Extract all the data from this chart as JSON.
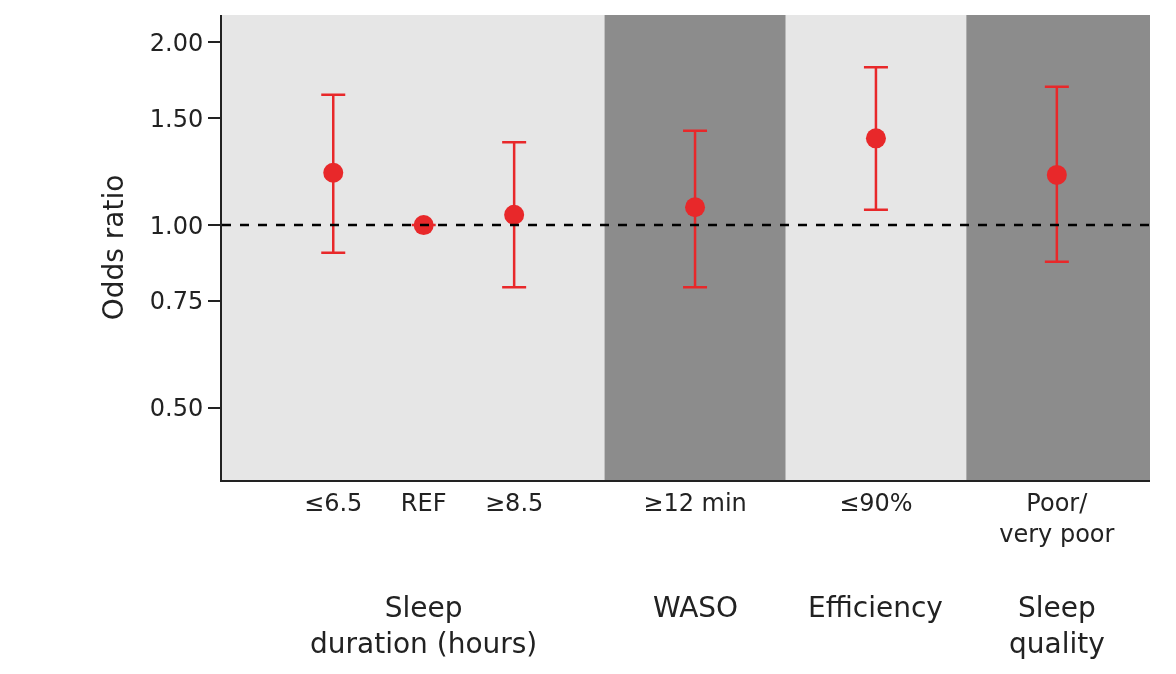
{
  "chart_data": {
    "type": "scatter",
    "ylabel": "Odds ratio",
    "log": "y",
    "categories": [
      "≤6.5",
      "REF",
      "≥8.5",
      null,
      "≥12 min",
      null,
      "≤90%",
      null,
      "Poor/\nvery poor"
    ],
    "ylim": [
      0.38,
      2.22
    ],
    "yticks": [
      {
        "value": 0.5,
        "label": "0.50"
      },
      {
        "value": 0.75,
        "label": "0.75"
      },
      {
        "value": 1,
        "label": "1.00"
      },
      {
        "value": 1.5,
        "label": "1.50"
      },
      {
        "value": 2,
        "label": "2.00"
      }
    ],
    "series": [
      {
        "color": "#e8282a",
        "values": [
          1.22,
          1.0,
          1.04,
          null,
          1.07,
          null,
          1.39,
          null,
          1.21
        ],
        "errors": [
          [
            0.9,
            1.64
          ],
          null,
          [
            0.79,
            1.37
          ],
          null,
          [
            0.79,
            1.43
          ],
          null,
          [
            1.06,
            1.82
          ],
          null,
          [
            0.87,
            1.69
          ]
        ]
      }
    ],
    "marker": "circle",
    "grid": false,
    "legend": false,
    "ref_lines": [
      {
        "axis": "y",
        "value": 1,
        "color": "#000000",
        "line_style": "dashed"
      }
    ],
    "annotations": [
      "Sleep\nduration (hours)",
      "WASO",
      "Efficiency",
      "Sleep\nquality"
    ]
  }
}
